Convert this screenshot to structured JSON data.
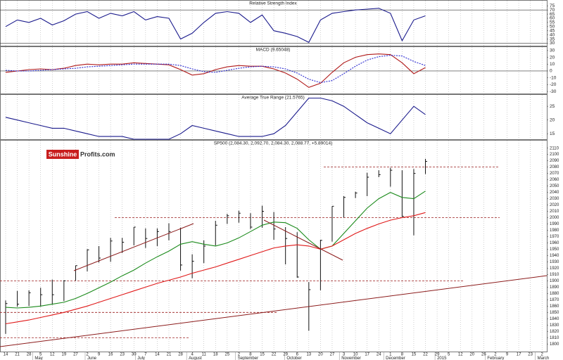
{
  "chart_data": [
    {
      "type": "line",
      "title": "Relative Strength Index",
      "ylim": [
        27,
        82
      ],
      "yticks": [
        30,
        35,
        40,
        45,
        50,
        55,
        60,
        65,
        70,
        75
      ],
      "levels": [
        70,
        30
      ],
      "series": [
        {
          "color": "#1a1a8c",
          "values": [
            50,
            58,
            55,
            60,
            52,
            57,
            65,
            68,
            60,
            66,
            63,
            68,
            58,
            62,
            60,
            35,
            42,
            55,
            66,
            68,
            66,
            55,
            64,
            45,
            42,
            38,
            31,
            58,
            66,
            68,
            70,
            71,
            72,
            66,
            33,
            58,
            63,
            null,
            null,
            null,
            null,
            null,
            null,
            null,
            null,
            null,
            null
          ]
        }
      ]
    },
    {
      "type": "line",
      "title": "MACD (9.65048)",
      "ylim": [
        -33,
        36
      ],
      "yticks": [
        30,
        20,
        10,
        0,
        -10,
        -20,
        -30
      ],
      "levels": [
        0
      ],
      "series": [
        {
          "color": "#b01818",
          "values": [
            -2,
            0,
            2,
            3,
            2,
            4,
            8,
            10,
            9,
            10,
            10,
            12,
            11,
            10,
            9,
            2,
            -6,
            -4,
            2,
            6,
            8,
            7,
            7,
            3,
            -3,
            -12,
            -24,
            -18,
            -2,
            12,
            20,
            24,
            25,
            24,
            12,
            -4,
            5,
            null,
            null,
            null,
            null,
            null,
            null,
            null,
            null,
            null,
            null
          ]
        },
        {
          "color": "#2a2ad0",
          "dashed": true,
          "values": [
            1,
            0,
            0,
            1,
            2,
            3,
            4,
            6,
            7,
            8,
            9,
            10,
            10,
            10,
            10,
            8,
            3,
            -1,
            -2,
            1,
            4,
            6,
            7,
            6,
            3,
            -3,
            -12,
            -17,
            -14,
            -4,
            7,
            16,
            21,
            23,
            22,
            14,
            8,
            null,
            null,
            null,
            null,
            null,
            null,
            null,
            null,
            null,
            null
          ]
        }
      ]
    },
    {
      "type": "line",
      "title": "Average True Range (21.5765)",
      "ylim": [
        13,
        29.4
      ],
      "yticks": [
        25,
        20,
        15
      ],
      "levels": [],
      "series": [
        {
          "color": "#1a1a8c",
          "values": [
            21,
            20,
            19,
            18,
            17,
            17,
            16,
            15,
            14,
            14,
            14,
            13,
            13,
            13,
            13,
            15,
            18,
            17,
            16,
            15,
            14,
            14,
            14,
            15,
            18,
            23,
            28,
            28,
            27,
            25,
            22,
            19,
            17,
            15,
            20,
            25,
            22,
            null,
            null,
            null,
            null,
            null,
            null,
            null,
            null,
            null,
            null
          ]
        }
      ]
    },
    {
      "type": "ohlc",
      "title": "SP500 (2,084.30, 2,092.70, 2,084.30, 2,088.77, +5.89014)",
      "brand": [
        "Sunshine",
        "Profits.com"
      ],
      "ylim": [
        1788,
        2123
      ],
      "yticks": [
        1800,
        1810,
        1820,
        1830,
        1840,
        1850,
        1860,
        1870,
        1880,
        1890,
        1900,
        1910,
        1920,
        1930,
        1940,
        1950,
        1960,
        1970,
        1980,
        1990,
        2000,
        2010,
        2020,
        2030,
        2040,
        2050,
        2060,
        2070,
        2080,
        2090,
        2100,
        2110
      ],
      "levels": [
        2080,
        2000,
        1900,
        1850,
        1810
      ],
      "level_color": "#9a1c1c",
      "bar_color": "#111111",
      "categories": [
        "14",
        "21",
        "28",
        "5",
        "12",
        "19",
        "27",
        "2",
        "9",
        "16",
        "23",
        "30",
        "7",
        "14",
        "21",
        "28",
        "4",
        "11",
        "18",
        "25",
        "2",
        "8",
        "15",
        "22",
        "29",
        "6",
        "13",
        "20",
        "27",
        "3",
        "10",
        "17",
        "24",
        "1",
        "8",
        "15",
        "22",
        "29",
        "5",
        "12",
        "20",
        "26",
        "2",
        "9",
        "17",
        "23",
        "2"
      ],
      "months": [
        "May",
        "June",
        "July",
        "August",
        "September",
        "October",
        "November",
        "December",
        "2015",
        "February",
        "March"
      ],
      "high": [
        1869,
        1884,
        1885,
        1889,
        1902,
        1901,
        1924,
        1950,
        1955,
        1968,
        1968,
        1985,
        1983,
        1983,
        1991,
        1984,
        1942,
        1964,
        1995,
        2006,
        2011,
        2007,
        2019,
        2009,
        1985,
        1977,
        1898,
        1965,
        2018,
        2034,
        2041,
        2071,
        2075,
        2079,
        2075,
        2077,
        2093,
        null,
        null,
        null,
        null,
        null,
        null,
        null,
        null,
        null,
        null
      ],
      "low": [
        1816,
        1859,
        1860,
        1859,
        1862,
        1868,
        1900,
        1915,
        1929,
        1930,
        1944,
        1956,
        1952,
        1955,
        1964,
        1916,
        1904,
        1928,
        1956,
        1990,
        1992,
        1982,
        1984,
        1965,
        1926,
        1905,
        1821,
        1885,
        1962,
        2000,
        2031,
        2034,
        2064,
        2049,
        2001,
        1972,
        2069,
        null,
        null,
        null,
        null,
        null,
        null,
        null,
        null,
        null,
        null
      ],
      "close": [
        1864,
        1863,
        1881,
        1878,
        1878,
        1900,
        1924,
        1949,
        1936,
        1963,
        1961,
        1985,
        1967,
        1978,
        1978,
        1925,
        1931,
        1955,
        1988,
        2003,
        2007,
        1985,
        2010,
        1982,
        1967,
        1906,
        1886,
        1964,
        2018,
        2032,
        2039,
        2064,
        2068,
        2075,
        2002,
        2070,
        2089,
        null,
        null,
        null,
        null,
        null,
        null,
        null,
        null,
        null,
        null
      ],
      "series": [
        {
          "color": "#1a8a1a",
          "values": [
            1858,
            1857,
            1858,
            1860,
            1863,
            1866,
            1872,
            1880,
            1889,
            1898,
            1908,
            1917,
            1928,
            1938,
            1947,
            1958,
            1962,
            1958,
            1955,
            1960,
            1968,
            1978,
            1988,
            1993,
            1992,
            1983,
            1965,
            1950,
            1955,
            1975,
            1995,
            2015,
            2030,
            2040,
            2032,
            2030,
            2042,
            null,
            null,
            null,
            null,
            null,
            null,
            null,
            null,
            null,
            null
          ]
        },
        {
          "color": "#e01818",
          "values": [
            1832,
            1835,
            1838,
            1842,
            1846,
            1850,
            1855,
            1860,
            1866,
            1872,
            1878,
            1884,
            1890,
            1896,
            1901,
            1906,
            1912,
            1917,
            1922,
            1928,
            1934,
            1940,
            1946,
            1952,
            1955,
            1957,
            1955,
            1950,
            1955,
            1965,
            1975,
            1983,
            1990,
            1996,
            2000,
            2003,
            2008,
            null,
            null,
            null,
            null,
            null,
            null,
            null,
            null,
            null,
            null
          ]
        }
      ]
    }
  ]
}
